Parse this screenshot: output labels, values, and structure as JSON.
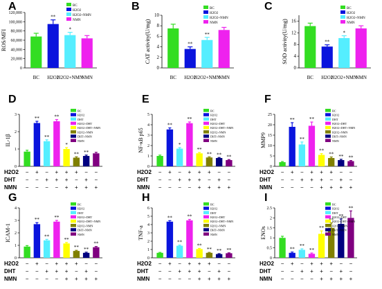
{
  "colors": {
    "green": "#33dd22",
    "blue": "#0a14dd",
    "cyan": "#55eeff",
    "magenta": "#ee22ee",
    "yellow": "#ffff00",
    "olive": "#808000",
    "navy": "#000080",
    "purple": "#800080",
    "axis": "#000000",
    "err": "#000000"
  },
  "legend_top": [
    "BC",
    "H2O2",
    "H2O2+NMN",
    "NMN"
  ],
  "legend_full": [
    "BC",
    "H2O2",
    "DHT",
    "H2O2+DHT",
    "H2O2+DHT+NMN",
    "H2O2+NMN",
    "DHT+NMN",
    "NMN"
  ],
  "treatment_rows": {
    "labels": [
      "H2O2",
      "DHT",
      "NMN"
    ],
    "signs": [
      [
        "−",
        "+",
        "−",
        "+",
        "+",
        "+",
        "−",
        "−"
      ],
      [
        "−",
        "−",
        "+",
        "+",
        "+",
        "−",
        "+",
        "−"
      ],
      [
        "−",
        "−",
        "−",
        "−",
        "+",
        "+",
        "+",
        "+"
      ]
    ]
  },
  "chart_data": [
    {
      "panel": "A",
      "type": "bar",
      "ylabel": "ROS/MFI",
      "categories": [
        "BC",
        "H2O2",
        "H2O2+NMN",
        "NMN"
      ],
      "values": [
        68000,
        95000,
        71000,
        64000
      ],
      "errors": [
        7000,
        9000,
        6000,
        6000
      ],
      "stars": [
        "",
        "**",
        "*",
        ""
      ],
      "ylim": [
        0,
        120000
      ],
      "ticks": [
        0,
        20000,
        40000,
        60000,
        80000,
        100000,
        120000
      ],
      "tick_labels": [
        "0",
        "20,000",
        "40,000",
        "60,000",
        "80,000",
        "100,000",
        "120,000"
      ]
    },
    {
      "panel": "B",
      "type": "bar",
      "ylabel": "CAT activity(U/mg)",
      "categories": [
        "BC",
        "H2O2",
        "H2O2+NMN",
        "NMN"
      ],
      "values": [
        7.5,
        3.6,
        5.3,
        7.2
      ],
      "errors": [
        0.8,
        0.4,
        0.5,
        0.5
      ],
      "stars": [
        "",
        "**",
        "**",
        ""
      ],
      "ylim": [
        0,
        10
      ],
      "ticks": [
        0,
        2,
        4,
        6,
        8,
        10
      ],
      "tick_labels": [
        "0",
        "2",
        "4",
        "6",
        "8",
        "10"
      ]
    },
    {
      "panel": "C",
      "type": "bar",
      "ylabel": "SOD activity(U/mg)",
      "categories": [
        "BC",
        "H2O2",
        "H2O2+NMN",
        "NMN"
      ],
      "values": [
        14.3,
        7.3,
        10.2,
        13.5
      ],
      "errors": [
        1.0,
        0.6,
        0.8,
        0.9
      ],
      "stars": [
        "",
        "**",
        "*",
        ""
      ],
      "ylim": [
        0,
        18
      ],
      "ticks": [
        0,
        4,
        8,
        12,
        16
      ],
      "tick_labels": [
        "0",
        "4",
        "8",
        "12",
        "16"
      ]
    },
    {
      "panel": "D",
      "type": "bar",
      "ylabel": "IL-1β",
      "categories": [
        "BC",
        "H2O2",
        "DHT",
        "H2O2+DHT",
        "H2O2+DHT+NMN",
        "H2O2+NMN",
        "DHT+NMN",
        "NMN"
      ],
      "values": [
        0.85,
        2.5,
        1.45,
        2.6,
        1.0,
        0.5,
        0.6,
        0.75
      ],
      "errors": [
        0.08,
        0.1,
        0.08,
        0.1,
        0.08,
        0.05,
        0.05,
        0.06
      ],
      "stars": [
        "",
        "**",
        "**",
        "**",
        "*",
        "**",
        "**",
        ""
      ],
      "ylim": [
        0,
        3
      ],
      "ticks": [
        0,
        1,
        2,
        3
      ],
      "tick_labels": [
        "0",
        "1",
        "2",
        "3"
      ]
    },
    {
      "panel": "E",
      "type": "bar",
      "ylabel": "NF-κB p65",
      "categories": [
        "BC",
        "H2O2",
        "DHT",
        "H2O2+DHT",
        "H2O2+DHT+NMN",
        "H2O2+NMN",
        "DHT+NMN",
        "NMN"
      ],
      "values": [
        1.0,
        3.55,
        1.7,
        4.15,
        1.25,
        0.85,
        0.8,
        0.6
      ],
      "errors": [
        0.08,
        0.15,
        0.1,
        0.12,
        0.08,
        0.06,
        0.05,
        0.05
      ],
      "stars": [
        "",
        "**",
        "*",
        "**",
        "**",
        "**",
        "**",
        "**"
      ],
      "ylim": [
        0,
        5
      ],
      "ticks": [
        0,
        1,
        2,
        3,
        4,
        5
      ],
      "tick_labels": [
        "0",
        "1",
        "2",
        "3",
        "4",
        "5"
      ]
    },
    {
      "panel": "F",
      "type": "bar",
      "ylabel": "MMP9",
      "categories": [
        "BC",
        "H2O2",
        "DHT",
        "H2O2+DHT",
        "H2O2+DHT+NMN",
        "H2O2+NMN",
        "DHT+NMN",
        "NMN"
      ],
      "values": [
        2.0,
        19.0,
        10.5,
        19.5,
        5.5,
        4.0,
        3.0,
        2.5
      ],
      "errors": [
        0.3,
        2.0,
        1.2,
        1.8,
        0.6,
        0.5,
        0.4,
        0.3
      ],
      "stars": [
        "",
        "**",
        "**",
        "**",
        "**",
        "**",
        "**",
        "**"
      ],
      "ylim": [
        0,
        25
      ],
      "ticks": [
        0,
        5,
        10,
        15,
        20,
        25
      ],
      "tick_labels": [
        "0",
        "5",
        "10",
        "15",
        "20",
        "25"
      ]
    },
    {
      "panel": "G",
      "type": "bar",
      "ylabel": "ICAM-1",
      "categories": [
        "BC",
        "H2O2",
        "DHT",
        "H2O2+DHT",
        "H2O2+DHT+NMN",
        "H2O2+NMN",
        "DHT+NMN",
        "NMN"
      ],
      "values": [
        0.9,
        2.7,
        1.4,
        2.9,
        1.15,
        0.55,
        0.4,
        0.85
      ],
      "errors": [
        0.08,
        0.12,
        0.08,
        0.1,
        0.08,
        0.05,
        0.05,
        0.06
      ],
      "stars": [
        "",
        "**",
        "**",
        "**",
        "**",
        "**",
        "**",
        "**"
      ],
      "ylim": [
        0,
        4
      ],
      "ticks": [
        0,
        1,
        2,
        3,
        4
      ],
      "tick_labels": [
        "0",
        "1",
        "2",
        "3",
        "4"
      ]
    },
    {
      "panel": "H",
      "type": "bar",
      "ylabel": "TNF-a",
      "categories": [
        "BC",
        "H2O2",
        "DHT",
        "H2O2+DHT",
        "H2O2+DHT+NMN",
        "H2O2+NMN",
        "DHT+NMN",
        "NMN"
      ],
      "values": [
        0.6,
        4.35,
        1.45,
        4.5,
        1.05,
        0.6,
        0.45,
        0.55
      ],
      "errors": [
        0.05,
        0.12,
        0.08,
        0.12,
        0.08,
        0.05,
        0.05,
        0.05
      ],
      "stars": [
        "",
        "**",
        "**",
        "**",
        "**",
        "**",
        "**",
        "**"
      ],
      "ylim": [
        0,
        6
      ],
      "ticks": [
        0,
        1,
        2,
        3,
        4,
        5,
        6
      ],
      "tick_labels": [
        "0",
        "1",
        "2",
        "3",
        "4",
        "5",
        "6"
      ]
    },
    {
      "panel": "I",
      "type": "bar",
      "ylabel": "ENOs",
      "categories": [
        "BC",
        "H2O2",
        "DHT",
        "H2O2+DHT",
        "H2O2+DHT+NMN",
        "H2O2+NMN",
        "DHT+NMN",
        "NMN"
      ],
      "values": [
        1.0,
        0.25,
        0.4,
        0.2,
        1.2,
        1.5,
        1.7,
        2.0
      ],
      "errors": [
        0.08,
        0.04,
        0.05,
        0.04,
        0.15,
        0.25,
        0.25,
        0.35
      ],
      "stars": [
        "",
        "**",
        "**",
        "**",
        "**",
        "**",
        "**",
        "**"
      ],
      "ylim": [
        0,
        2.5
      ],
      "ticks": [
        0,
        0.5,
        1,
        1.5,
        2,
        2.5
      ],
      "tick_labels": [
        "0",
        "0.5",
        "1",
        "1.5",
        "2",
        "2.5"
      ]
    }
  ]
}
